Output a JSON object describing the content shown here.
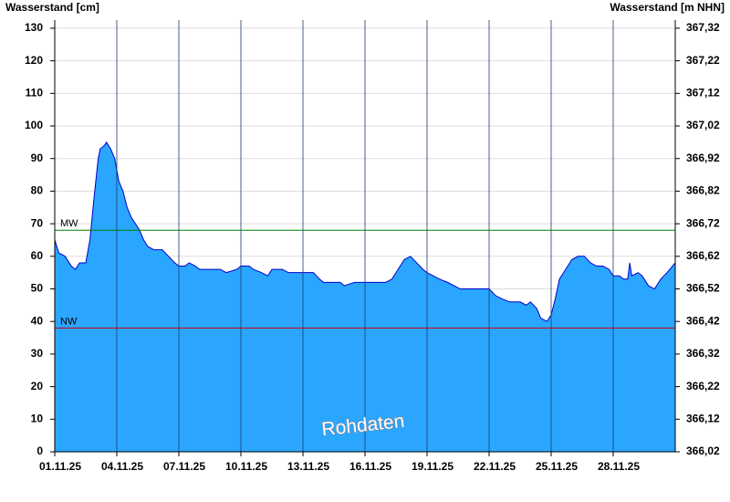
{
  "chart_data": {
    "type": "area",
    "y_label": "Wasserstand [cm]",
    "y2_label": "Wasserstand [m NHN]",
    "x": [
      1.0,
      1.2,
      1.5,
      1.8,
      2.0,
      2.2,
      2.5,
      2.7,
      2.9,
      3.1,
      3.2,
      3.4,
      3.5,
      3.7,
      3.9,
      4.1,
      4.3,
      4.5,
      4.7,
      4.9,
      5.1,
      5.3,
      5.5,
      5.8,
      6.2,
      6.5,
      6.8,
      7.0,
      7.3,
      7.5,
      7.8,
      8.0,
      8.5,
      9.0,
      9.3,
      9.8,
      10.0,
      10.4,
      10.6,
      11.0,
      11.3,
      11.5,
      12.0,
      12.3,
      13.0,
      13.5,
      13.8,
      14.0,
      14.5,
      14.8,
      15.0,
      15.5,
      16.0,
      16.5,
      17.0,
      17.3,
      17.6,
      17.9,
      18.2,
      18.5,
      18.8,
      19.0,
      19.3,
      19.6,
      20.0,
      20.3,
      20.6,
      21.0,
      21.5,
      22.0,
      22.3,
      22.6,
      23.0,
      23.5,
      23.8,
      24.0,
      24.3,
      24.5,
      24.8,
      25.0,
      25.2,
      25.4,
      25.7,
      26.0,
      26.3,
      26.6,
      26.9,
      27.2,
      27.5,
      27.8,
      28.0,
      28.3,
      28.5,
      28.7,
      28.8,
      28.9,
      29.2,
      29.4,
      29.7,
      30.0,
      30.3,
      30.6,
      31.0
    ],
    "values": [
      65,
      61,
      60,
      57,
      56,
      58,
      58,
      65,
      78,
      90,
      93,
      94,
      95,
      93,
      90,
      83,
      80,
      75,
      72,
      70,
      68,
      65,
      63,
      62,
      62,
      60,
      58,
      57,
      57,
      58,
      57,
      56,
      56,
      56,
      55,
      56,
      57,
      57,
      56,
      55,
      54,
      56,
      56,
      55,
      55,
      55,
      53,
      52,
      52,
      52,
      51,
      52,
      52,
      52,
      52,
      53,
      56,
      59,
      60,
      58,
      56,
      55,
      54,
      53,
      52,
      51,
      50,
      50,
      50,
      50,
      48,
      47,
      46,
      46,
      45,
      46,
      44,
      41,
      40,
      42,
      47,
      53,
      56,
      59,
      60,
      60,
      58,
      57,
      57,
      56,
      54,
      54,
      53,
      53,
      58,
      54,
      55,
      54,
      51,
      50,
      53,
      55,
      58
    ],
    "color": "#2aa6ff",
    "line_color": "#0000cc",
    "xlim": [
      1,
      31
    ],
    "xticks": [
      {
        "value": 1,
        "label": "01.11.25"
      },
      {
        "value": 4,
        "label": "04.11.25"
      },
      {
        "value": 7,
        "label": "07.11.25"
      },
      {
        "value": 10,
        "label": "10.11.25"
      },
      {
        "value": 13,
        "label": "13.11.25"
      },
      {
        "value": 16,
        "label": "16.11.25"
      },
      {
        "value": 19,
        "label": "19.11.25"
      },
      {
        "value": 22,
        "label": "22.11.25"
      },
      {
        "value": 25,
        "label": "25.11.25"
      },
      {
        "value": 28,
        "label": "28.11.25"
      }
    ],
    "ylim": [
      0,
      132.5
    ],
    "yticks": [
      0,
      10,
      20,
      30,
      40,
      50,
      60,
      70,
      80,
      90,
      100,
      110,
      120,
      130
    ],
    "y2lim": [
      366.02,
      367.345
    ],
    "y2ticks": [
      {
        "value": 366.02,
        "label": "366,02"
      },
      {
        "value": 366.12,
        "label": "366,12"
      },
      {
        "value": 366.22,
        "label": "366,22"
      },
      {
        "value": 366.32,
        "label": "366,32"
      },
      {
        "value": 366.42,
        "label": "366,42"
      },
      {
        "value": 366.52,
        "label": "366,52"
      },
      {
        "value": 366.62,
        "label": "366,62"
      },
      {
        "value": 366.72,
        "label": "366,72"
      },
      {
        "value": 366.82,
        "label": "366,82"
      },
      {
        "value": 366.92,
        "label": "366,92"
      },
      {
        "value": 367.02,
        "label": "367,02"
      },
      {
        "value": 367.12,
        "label": "367,12"
      },
      {
        "value": 367.22,
        "label": "367,22"
      },
      {
        "value": 367.32,
        "label": "367,32"
      }
    ],
    "grid": true,
    "reference_lines": [
      {
        "label": "MW",
        "value": 68,
        "color": "#008000"
      },
      {
        "label": "NW",
        "value": 38,
        "color": "#cc0000"
      }
    ],
    "watermark": "Rohdaten"
  }
}
